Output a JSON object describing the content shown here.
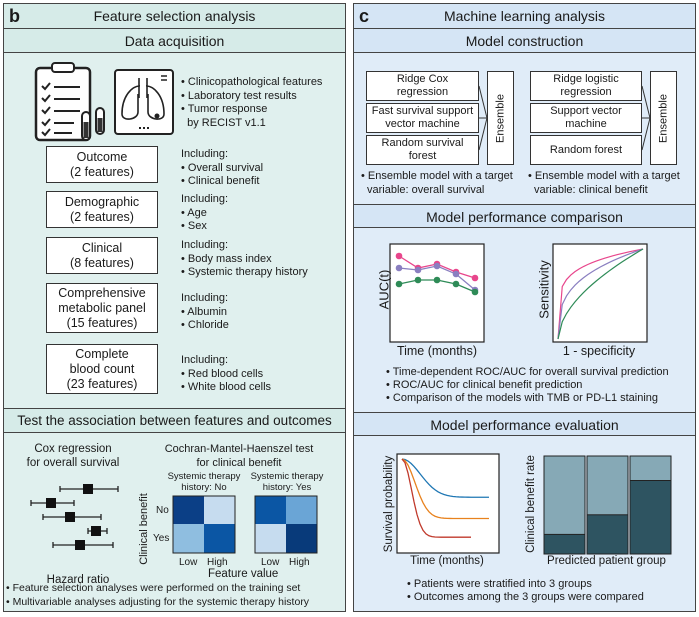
{
  "panel_b": {
    "letter": "b",
    "title": "Feature selection analysis",
    "data_acquisition": {
      "header": "Data acquisition",
      "sources": [
        "• Clinicopathological features",
        "• Laboratory test results",
        "• Tumor response",
        "  by RECIST v1.1"
      ],
      "categories": [
        {
          "name": "Outcome",
          "count": "(2 features)",
          "including": "Including:",
          "items": [
            "• Overall survival",
            "• Clinical benefit"
          ]
        },
        {
          "name": "Demographic",
          "count": "(2 features)",
          "including": "Including:",
          "items": [
            "• Age",
            "• Sex"
          ]
        },
        {
          "name": "Clinical",
          "count": "(8 features)",
          "including": "Including:",
          "items": [
            "• Body mass index",
            "• Systemic therapy history"
          ]
        },
        {
          "name": "Comprehensive metabolic panel",
          "count": "(15 features)",
          "including": "Including:",
          "items": [
            "• Albumin",
            "• Chloride"
          ]
        },
        {
          "name": "Complete blood count",
          "count": "(23 features)",
          "including": "Including:",
          "items": [
            "• Red blood cells",
            "• White blood cells"
          ]
        }
      ]
    },
    "association": {
      "header": "Test the association between features and outcomes",
      "cox_title_1": "Cox regression",
      "cox_title_2": "for overall survival",
      "cox_xlabel": "Hazard ratio",
      "cmh_title_1": "Cochran-Mantel-Haenszel test",
      "cmh_title_2": "for clinical benefit",
      "strata": [
        {
          "l1": "Systemic therapy",
          "l2": "history: No"
        },
        {
          "l1": "Systemic therapy",
          "l2": "history: Yes"
        }
      ],
      "ylabel": "Clinical benefit",
      "y_ticks": [
        "No",
        "Yes"
      ],
      "x_ticks": [
        "Low",
        "High"
      ],
      "xlabel": "Feature value",
      "notes": [
        "• Feature selection analyses were performed on the training set",
        "• Multivariable analyses adjusting for the systemic therapy history"
      ]
    }
  },
  "panel_c": {
    "letter": "c",
    "title": "Machine learning analysis",
    "construction": {
      "header": "Model construction",
      "group1": {
        "models": [
          [
            "Ridge Cox",
            "regression"
          ],
          [
            "Fast survival support",
            "vector machine"
          ],
          [
            "Random survival",
            "forest"
          ]
        ],
        "ensemble": "Ensemble",
        "note": [
          "• Ensemble model with a target",
          "variable: overall survival"
        ]
      },
      "group2": {
        "models": [
          [
            "Ridge logistic",
            "regression"
          ],
          [
            "Support vector",
            "machine"
          ],
          [
            "Random forest"
          ]
        ],
        "ensemble": "Ensemble",
        "note": [
          "• Ensemble model with a target",
          "variable: clinical benefit"
        ]
      }
    },
    "comparison": {
      "header": "Model performance comparison",
      "auc_ylabel": "AUC(t)",
      "auc_xlabel": "Time (months)",
      "roc_ylabel": "Sensitivity",
      "roc_xlabel": "1 - specificity",
      "series_colors": [
        "#e8468c",
        "#8a7fc0",
        "#2e8b57"
      ],
      "notes": [
        "• Time-dependent ROC/AUC for overall survival prediction",
        "• ROC/AUC for clinical benefit prediction",
        "• Comparison of the models with TMB or PD-L1 staining"
      ]
    },
    "evaluation": {
      "header": "Model performance evaluation",
      "km_ylabel": "Survival probability",
      "km_xlabel": "Time (months)",
      "km_colors": [
        "#1f77b4",
        "#e8821e",
        "#c0392b"
      ],
      "bar_ylabel": "Clinical benefit rate",
      "bar_xlabel": "Predicted patient group",
      "benefit_rates": [
        0.2,
        0.4,
        0.75
      ],
      "notes": [
        "• Patients were stratified into 3 groups",
        "• Outcomes among the 3 groups were compared"
      ]
    }
  }
}
